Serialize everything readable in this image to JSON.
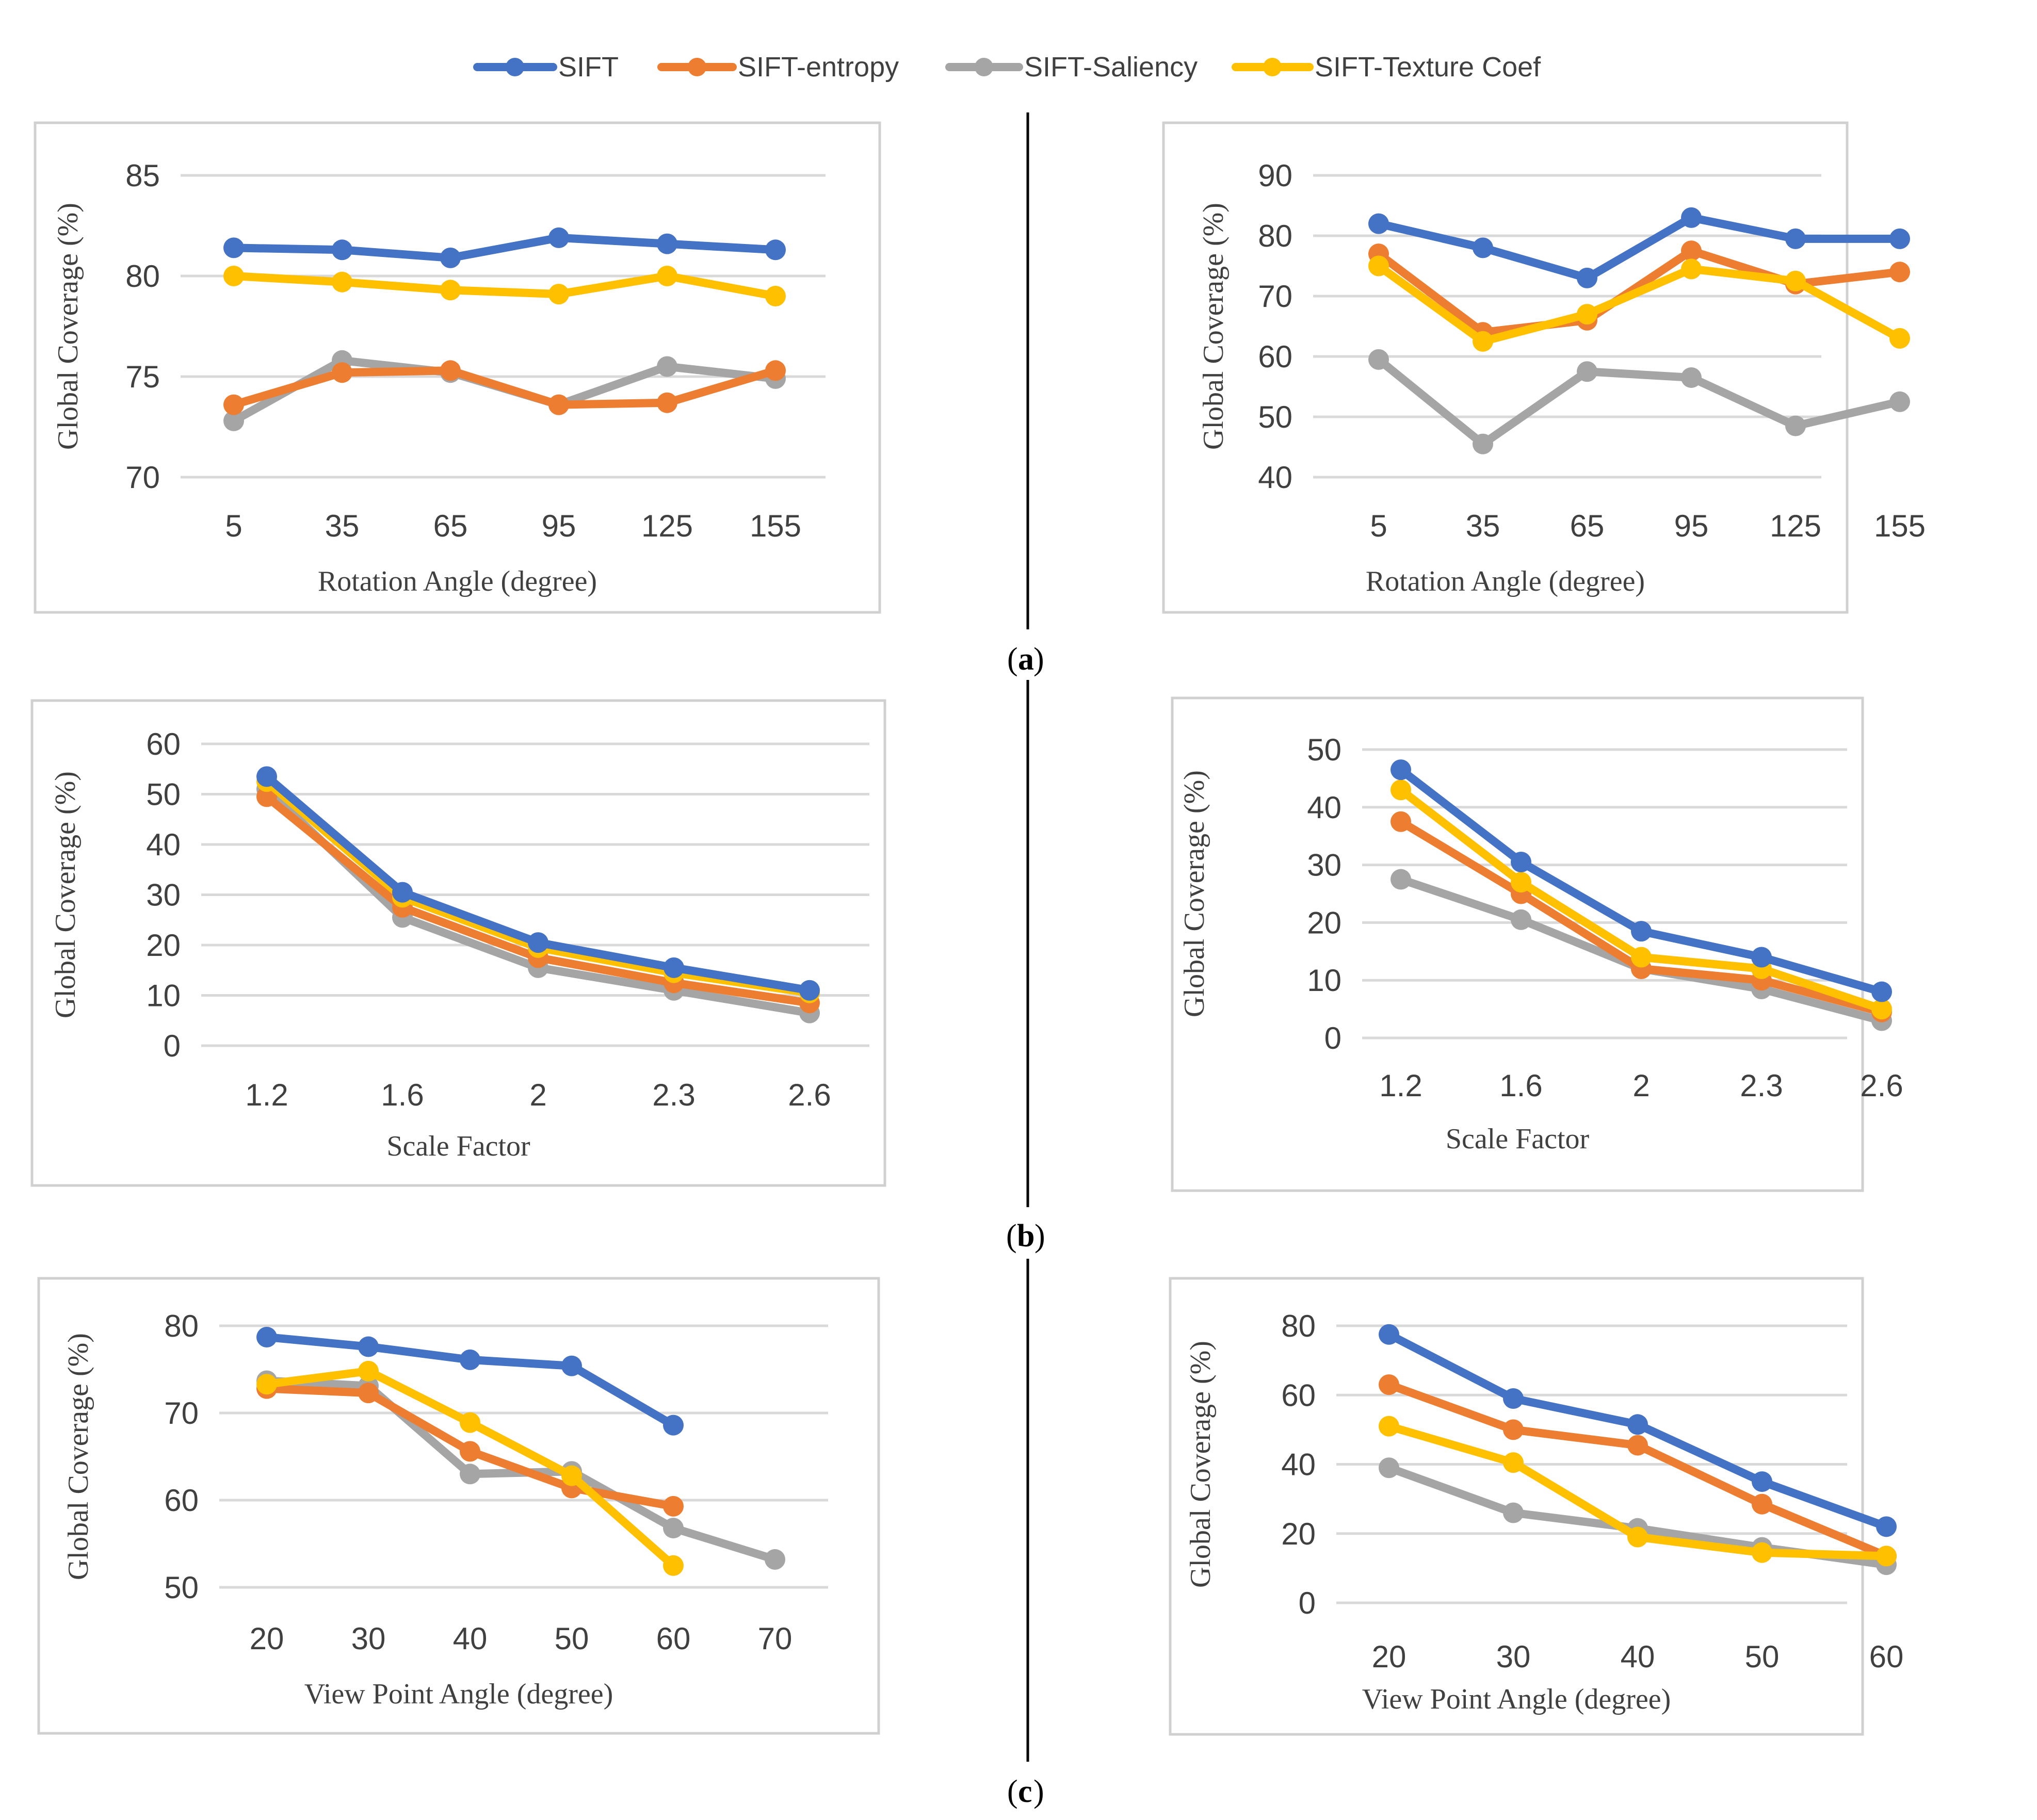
{
  "legend": [
    {
      "name": "SIFT",
      "color": "#4472C4"
    },
    {
      "name": "SIFT-entropy",
      "color": "#ED7D31"
    },
    {
      "name": "SIFT-Saliency",
      "color": "#A5A5A5"
    },
    {
      "name": "SIFT-Texture Coef",
      "color": "#FFC000"
    }
  ],
  "panel_labels": {
    "a": "a",
    "b": "b",
    "c": "c"
  },
  "chart_data": [
    {
      "type": "line",
      "id": "a-left",
      "categories": [
        "5",
        "35",
        "65",
        "95",
        "125",
        "155"
      ],
      "ylim": [
        70,
        85
      ],
      "yticks": [
        70,
        75,
        80,
        85
      ],
      "xlabel": "Rotation Angle (degree)",
      "ylabel": "Global Coverage (%)",
      "grid": true,
      "series": [
        {
          "name": "SIFT",
          "values": [
            81.4,
            81.3,
            80.9,
            81.9,
            81.6,
            81.3
          ]
        },
        {
          "name": "SIFT-entropy",
          "values": [
            73.6,
            75.2,
            75.3,
            73.6,
            73.7,
            75.3
          ]
        },
        {
          "name": "SIFT-Saliency",
          "values": [
            72.8,
            75.8,
            75.2,
            73.6,
            75.5,
            74.9
          ]
        },
        {
          "name": "SIFT-Texture Coef",
          "values": [
            80.0,
            79.7,
            79.3,
            79.1,
            80.0,
            79.0
          ]
        }
      ]
    },
    {
      "type": "line",
      "id": "a-right",
      "categories": [
        "5",
        "35",
        "65",
        "95",
        "125",
        "155"
      ],
      "ylim": [
        40,
        90
      ],
      "yticks": [
        40,
        50,
        60,
        70,
        80,
        90
      ],
      "xlabel": "Rotation Angle (degree)",
      "ylabel": "Global Coverage (%)",
      "grid": true,
      "series": [
        {
          "name": "SIFT",
          "values": [
            82,
            78,
            73,
            83,
            79.5,
            79.5
          ]
        },
        {
          "name": "SIFT-entropy",
          "values": [
            77,
            64,
            66,
            77.5,
            72,
            74
          ]
        },
        {
          "name": "SIFT-Saliency",
          "values": [
            59.5,
            45.5,
            57.5,
            56.5,
            48.5,
            52.5
          ]
        },
        {
          "name": "SIFT-Texture Coef",
          "values": [
            75,
            62.5,
            67,
            74.5,
            72.5,
            63
          ]
        }
      ]
    },
    {
      "type": "line",
      "id": "b-left",
      "categories": [
        "1.2",
        "1.6",
        "2",
        "2.3",
        "2.6"
      ],
      "ylim": [
        0,
        60
      ],
      "yticks": [
        0,
        10,
        20,
        30,
        40,
        50,
        60
      ],
      "xlabel": "Scale Factor",
      "ylabel": "Global Coverage (%)",
      "grid": true,
      "series": [
        {
          "name": "SIFT",
          "values": [
            53.5,
            30.5,
            20.5,
            15.5,
            11
          ]
        },
        {
          "name": "SIFT-entropy",
          "values": [
            49.5,
            27.5,
            17.5,
            12.5,
            8.5
          ]
        },
        {
          "name": "SIFT-Saliency",
          "values": [
            51,
            25.5,
            15.5,
            11,
            6.5
          ]
        },
        {
          "name": "SIFT-Texture Coef",
          "values": [
            52.5,
            29.5,
            19.5,
            14.5,
            10.5
          ]
        }
      ]
    },
    {
      "type": "line",
      "id": "b-right",
      "categories": [
        "1.2",
        "1.6",
        "2",
        "2.3",
        "2.6"
      ],
      "ylim": [
        0,
        50
      ],
      "yticks": [
        0,
        10,
        20,
        30,
        40,
        50
      ],
      "xlabel": "Scale Factor",
      "ylabel": "Global Coverage (%)",
      "grid": true,
      "series": [
        {
          "name": "SIFT",
          "values": [
            46.5,
            30.5,
            18.5,
            14,
            8
          ]
        },
        {
          "name": "SIFT-entropy",
          "values": [
            37.5,
            25,
            12,
            10,
            4.5
          ]
        },
        {
          "name": "SIFT-Saliency",
          "values": [
            27.5,
            20.5,
            12,
            8.5,
            3
          ]
        },
        {
          "name": "SIFT-Texture Coef",
          "values": [
            43,
            27,
            14,
            12,
            5
          ]
        }
      ]
    },
    {
      "type": "line",
      "id": "c-left",
      "categories": [
        "20",
        "30",
        "40",
        "50",
        "60",
        "70"
      ],
      "ylim": [
        50,
        80
      ],
      "yticks": [
        50,
        60,
        70,
        80
      ],
      "xlabel": "View Point  Angle (degree)",
      "ylabel": "Global Coverage (%)",
      "grid": true,
      "series": [
        {
          "name": "SIFT",
          "values": [
            78.7,
            77.6,
            76.1,
            75.4,
            68.6,
            null
          ]
        },
        {
          "name": "SIFT-entropy",
          "values": [
            72.8,
            72.3,
            65.6,
            61.4,
            59.3,
            null
          ]
        },
        {
          "name": "SIFT-Saliency",
          "values": [
            73.7,
            73.1,
            63,
            63.3,
            56.8,
            53.2
          ]
        },
        {
          "name": "SIFT-Texture Coef",
          "values": [
            73.3,
            74.8,
            68.9,
            62.8,
            52.5,
            null
          ]
        }
      ]
    },
    {
      "type": "line",
      "id": "c-right",
      "categories": [
        "20",
        "30",
        "40",
        "50",
        "60"
      ],
      "ylim": [
        0,
        80
      ],
      "yticks": [
        0,
        20,
        40,
        60,
        80
      ],
      "xlabel": "View Point Angle (degree)",
      "ylabel": "Global Coverage (%)",
      "grid": true,
      "series": [
        {
          "name": "SIFT",
          "values": [
            77.5,
            59,
            51.5,
            35,
            22
          ]
        },
        {
          "name": "SIFT-entropy",
          "values": [
            63,
            50,
            45.5,
            28.5,
            13.5
          ]
        },
        {
          "name": "SIFT-Saliency",
          "values": [
            39,
            26,
            21.5,
            16,
            11
          ]
        },
        {
          "name": "SIFT-Texture Coef",
          "values": [
            51,
            40.5,
            19,
            14.5,
            13.5
          ]
        }
      ]
    }
  ]
}
